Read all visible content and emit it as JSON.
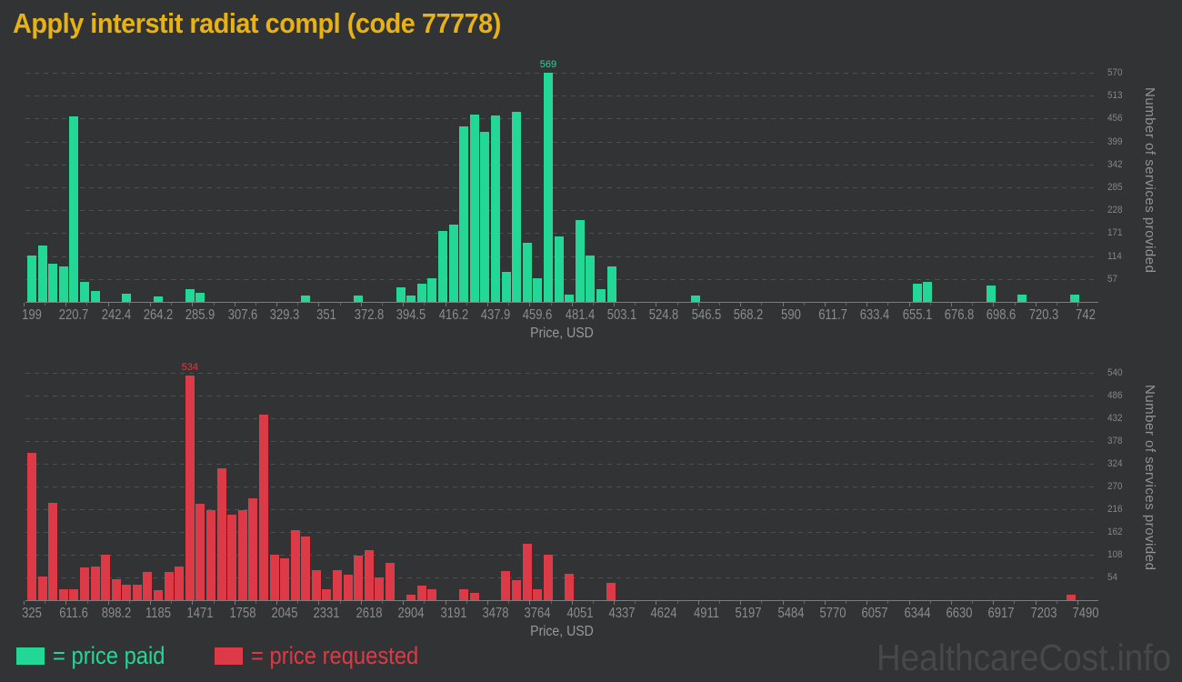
{
  "title": "Apply interstit radiat compl (code 77778)",
  "watermark": "HealthcareCost.info",
  "legend": {
    "paid_label": "= price paid",
    "requested_label": "= price requested"
  },
  "colors": {
    "background": "#323334",
    "title": "#e8b214",
    "paid": "#23d796",
    "requested": "#dd3a48",
    "axis_text": "#8b8c8d",
    "gridline": "#4d4f50",
    "watermark": "#474849"
  },
  "chart_data": [
    {
      "type": "bar",
      "name": "price paid",
      "color": "#23d796",
      "xlabel": "Price, USD",
      "ylabel": "Number of services provided",
      "peak_label": "569",
      "x_ticks": [
        "199",
        "220.7",
        "242.4",
        "264.2",
        "285.9",
        "307.6",
        "329.3",
        "351",
        "372.8",
        "394.5",
        "416.2",
        "437.9",
        "459.6",
        "481.4",
        "503.1",
        "524.8",
        "546.5",
        "568.2",
        "590",
        "611.7",
        "633.4",
        "655.1",
        "676.8",
        "698.6",
        "720.3",
        "742"
      ],
      "y_ticks": [
        57,
        114,
        171,
        228,
        285,
        342,
        399,
        456,
        513,
        570
      ],
      "xlim": [
        199,
        742
      ],
      "ylim": [
        0,
        570
      ],
      "grid": "dashed",
      "bars": [
        [
          199,
          116
        ],
        [
          204.4,
          141
        ],
        [
          209.9,
          95
        ],
        [
          215.3,
          89
        ],
        [
          220.7,
          462
        ],
        [
          226.2,
          50
        ],
        [
          231.6,
          27
        ],
        [
          247.9,
          20
        ],
        [
          264.2,
          14
        ],
        [
          280.5,
          32
        ],
        [
          285.9,
          23
        ],
        [
          340.2,
          16
        ],
        [
          367.3,
          15
        ],
        [
          389.1,
          36
        ],
        [
          394.5,
          15
        ],
        [
          399.9,
          46
        ],
        [
          405.3,
          59
        ],
        [
          410.8,
          176
        ],
        [
          416.2,
          193
        ],
        [
          421.6,
          437
        ],
        [
          427.1,
          465
        ],
        [
          432.5,
          422
        ],
        [
          437.9,
          463
        ],
        [
          443.4,
          75
        ],
        [
          448.8,
          472
        ],
        [
          454.2,
          147
        ],
        [
          459.6,
          59
        ],
        [
          465.1,
          569
        ],
        [
          470.5,
          162
        ],
        [
          475.9,
          19
        ],
        [
          481.4,
          204
        ],
        [
          486.8,
          116
        ],
        [
          492.2,
          32
        ],
        [
          497.7,
          89
        ],
        [
          541.1,
          15
        ],
        [
          655.1,
          46
        ],
        [
          660.6,
          50
        ],
        [
          693.1,
          40
        ],
        [
          709.4,
          18
        ],
        [
          736.6,
          18
        ]
      ]
    },
    {
      "type": "bar",
      "name": "price requested",
      "color": "#dd3a48",
      "xlabel": "Price, USD",
      "ylabel": "Number of services provided",
      "peak_label": "534",
      "x_ticks": [
        "325",
        "611.6",
        "898.2",
        "1185",
        "1471",
        "1758",
        "2045",
        "2331",
        "2618",
        "2904",
        "3191",
        "3478",
        "3764",
        "4051",
        "4337",
        "4624",
        "4911",
        "5197",
        "5484",
        "5770",
        "6057",
        "6344",
        "6630",
        "6917",
        "7203",
        "7490"
      ],
      "y_ticks": [
        54,
        108,
        162,
        216,
        270,
        324,
        378,
        432,
        486,
        540
      ],
      "xlim": [
        325,
        7490
      ],
      "ylim": [
        0,
        540
      ],
      "grid": "dashed",
      "bars": [
        [
          325,
          349
        ],
        [
          396.7,
          56
        ],
        [
          468.3,
          232
        ],
        [
          540,
          27
        ],
        [
          611.6,
          27
        ],
        [
          683.3,
          77
        ],
        [
          754.9,
          79
        ],
        [
          826.6,
          108
        ],
        [
          898.2,
          50
        ],
        [
          969.8,
          37
        ],
        [
          1041.5,
          36
        ],
        [
          1113.1,
          66
        ],
        [
          1184.8,
          23
        ],
        [
          1256.4,
          66
        ],
        [
          1328,
          81
        ],
        [
          1399.7,
          534
        ],
        [
          1471.3,
          228
        ],
        [
          1543,
          214
        ],
        [
          1614.6,
          313
        ],
        [
          1686.2,
          202
        ],
        [
          1757.9,
          214
        ],
        [
          1829.5,
          241
        ],
        [
          1901.1,
          440
        ],
        [
          1972.8,
          109
        ],
        [
          2044.4,
          99
        ],
        [
          2116.1,
          167
        ],
        [
          2187.7,
          151
        ],
        [
          2259.3,
          72
        ],
        [
          2331,
          25
        ],
        [
          2402.6,
          72
        ],
        [
          2474.2,
          61
        ],
        [
          2545.9,
          106
        ],
        [
          2617.5,
          119
        ],
        [
          2689.2,
          54
        ],
        [
          2760.8,
          88
        ],
        [
          2904.1,
          12
        ],
        [
          2975.7,
          34
        ],
        [
          3047.4,
          27
        ],
        [
          3262.3,
          27
        ],
        [
          3333.9,
          18
        ],
        [
          3548.9,
          70
        ],
        [
          3620.5,
          48
        ],
        [
          3692.1,
          135
        ],
        [
          3763.7,
          25
        ],
        [
          3835.4,
          109
        ],
        [
          3978.6,
          63
        ],
        [
          4265.3,
          40
        ],
        [
          7390.4,
          14
        ]
      ]
    }
  ]
}
